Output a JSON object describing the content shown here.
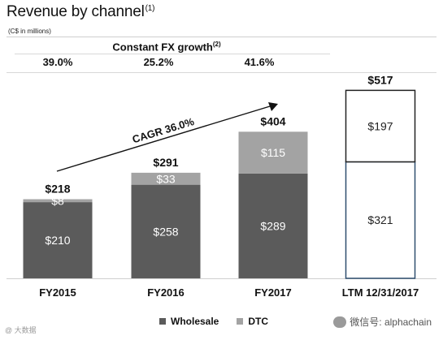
{
  "header": {
    "title": "Revenue by channel",
    "title_note": "(1)",
    "unit": "(C$ in millions)"
  },
  "fx": {
    "heading": "Constant FX growth",
    "heading_note": "(2)",
    "values": [
      "39.0%",
      "25.2%",
      "41.6%"
    ]
  },
  "annotation": {
    "cagr": "CAGR 36.0%"
  },
  "legend": {
    "wholesale": "Wholesale",
    "dtc": "DTC"
  },
  "watermark": {
    "right": "微信号: alphachain",
    "left": "@ 大数据"
  },
  "colors": {
    "wholesale": "#5b5b5b",
    "dtc": "#a3a3a3",
    "ltm_border": "#2f4f6f",
    "text_on_bar": "#ffffff"
  },
  "chart_data": {
    "type": "bar",
    "stacked": true,
    "categories": [
      "FY2015",
      "FY2016",
      "FY2017",
      "LTM 12/31/2017"
    ],
    "totals": [
      "$218",
      "$291",
      "$404",
      "$517"
    ],
    "series": [
      {
        "name": "Wholesale",
        "values": [
          210,
          258,
          289,
          321
        ],
        "labels": [
          "$210",
          "$258",
          "$289",
          "$321"
        ]
      },
      {
        "name": "DTC",
        "values": [
          8,
          33,
          115,
          197
        ],
        "labels": [
          "$8",
          "$33",
          "$115",
          "$197"
        ]
      }
    ],
    "ylim": [
      0,
      530
    ],
    "grid": false,
    "legend_position": "bottom"
  }
}
